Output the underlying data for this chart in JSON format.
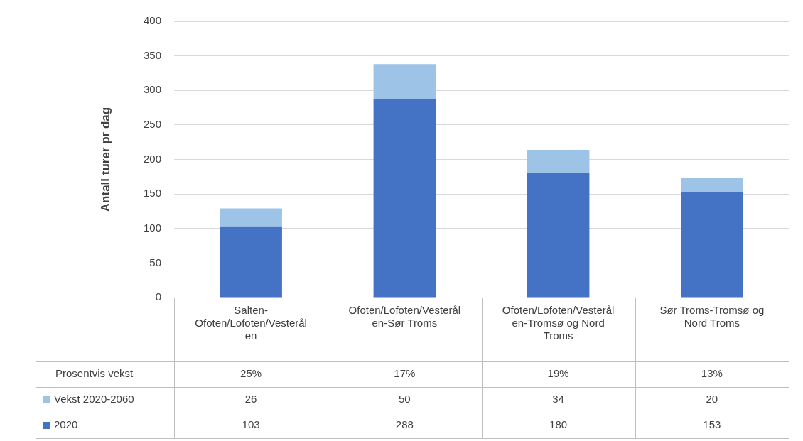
{
  "chart_data": {
    "type": "bar",
    "stacked": true,
    "ylabel": "Antall turer pr dag",
    "categories": [
      "Salten-Ofoten/Lofoten/Vesterålen",
      "Ofoten/Lofoten/Vesterålen-Sør Troms",
      "Ofoten/Lofoten/Vesterålen-Tromsø og Nord Troms",
      "Sør Troms-Tromsø og Nord Troms"
    ],
    "series": [
      {
        "name": "2020",
        "color": "#4472c4",
        "values": [
          103,
          288,
          180,
          153
        ]
      },
      {
        "name": "Vekst 2020-2060",
        "color": "#9dc3e6",
        "values": [
          26,
          50,
          34,
          20
        ]
      }
    ],
    "ylim": [
      0,
      400
    ],
    "yticks": [
      0,
      50,
      100,
      150,
      200,
      250,
      300,
      350,
      400
    ],
    "grid": "y",
    "legend": "bottom",
    "data_labels": true,
    "annotations": [
      "Prosentvis vekst",
      "25%",
      "17%",
      "19%",
      "13%"
    ]
  }
}
